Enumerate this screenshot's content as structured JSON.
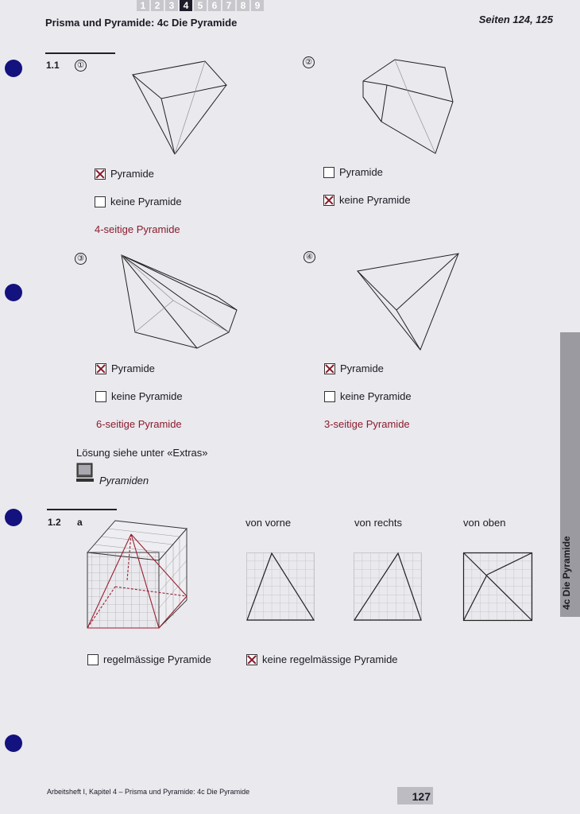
{
  "header": {
    "chapters": [
      "1",
      "2",
      "3",
      "4",
      "5",
      "6",
      "7",
      "8",
      "9"
    ],
    "active_chapter": "4",
    "title_bold": "Prisma und Pyramide:",
    "title_rest": " 4c Die Pyramide",
    "pages": "Seiten 124, 125"
  },
  "task_1_1": {
    "number": "1.1",
    "items": [
      {
        "num": "①",
        "opt1": "Pyramide",
        "opt2": "keine Pyramide",
        "checked": "opt1",
        "answer": "4-seitige Pyramide"
      },
      {
        "num": "②",
        "opt1": "Pyramide",
        "opt2": "keine Pyramide",
        "checked": "opt2",
        "answer": ""
      },
      {
        "num": "③",
        "opt1": "Pyramide",
        "opt2": "keine Pyramide",
        "checked": "opt1",
        "answer": "6-seitige Pyramide"
      },
      {
        "num": "④",
        "opt1": "Pyramide",
        "opt2": "keine Pyramide",
        "checked": "opt1",
        "answer": "3-seitige Pyramide"
      }
    ],
    "solution_note": "Lösung siehe unter «Extras»",
    "extras_link": "Pyramiden"
  },
  "task_1_2": {
    "number": "1.2",
    "part": "a",
    "views": [
      "von vorne",
      "von rechts",
      "von oben"
    ],
    "opt1": "regelmässige Pyramide",
    "opt2": "keine regelmässige Pyramide",
    "checked": "opt2"
  },
  "side_tab": "4c Die Pyramide",
  "footer": {
    "text": "Arbeitsheft I, Kapitel 4 – Prisma und Pyramide: 4c Die Pyramide",
    "page_number": "127"
  },
  "colors": {
    "accent_red": "#8b1c2c",
    "punch_blue": "#13127e",
    "tab_gray": "#9a9aa0"
  }
}
